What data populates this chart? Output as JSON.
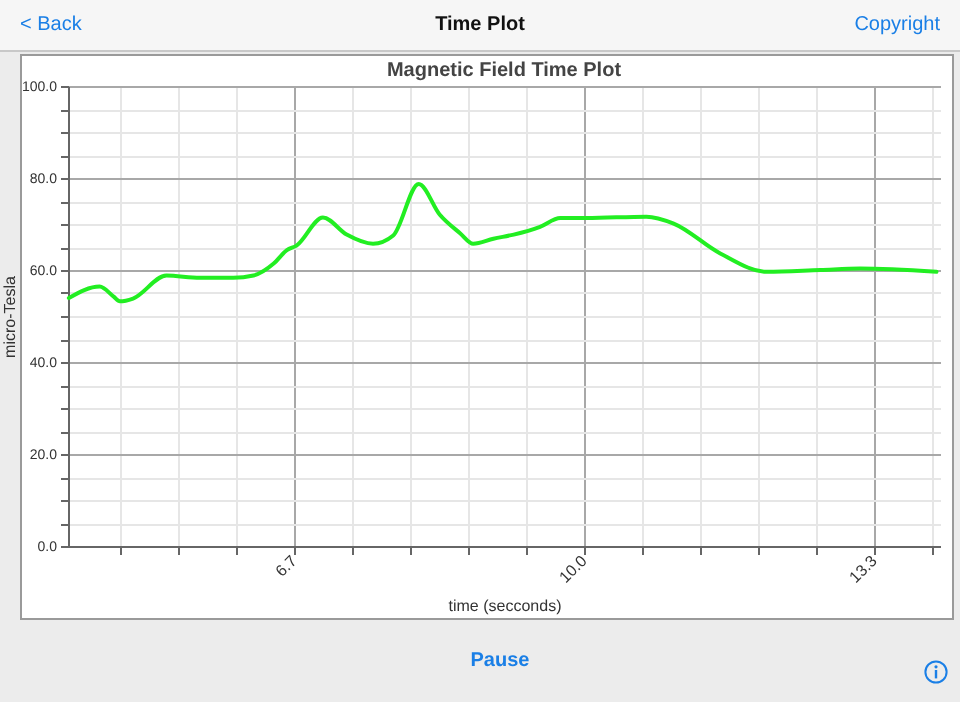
{
  "chart_data": {
    "type": "line",
    "title": "Magnetic Field Time Plot",
    "xlabel": "time (secconds)",
    "ylabel": "micro-Tesla",
    "annotations": [
      "< Back",
      "Time Plot",
      "Copyright",
      "Pause"
    ],
    "x": [
      4.14,
      4.49,
      4.65,
      4.72,
      4.87,
      5.25,
      5.63,
      6.01,
      6.24,
      6.47,
      6.62,
      6.73,
      7.03,
      7.3,
      7.6,
      7.83,
      8.12,
      8.36,
      8.59,
      8.74,
      8.97,
      9.2,
      9.5,
      9.73,
      10.03,
      10.71,
      11.02,
      11.55,
      12.08,
      12.69,
      13.14,
      14.01
    ],
    "series": [
      {
        "color": "#22ee22",
        "values": [
          53.9,
          56.4,
          54.2,
          53.2,
          53.8,
          58.8,
          58.3,
          58.3,
          58.8,
          61.4,
          64.3,
          65.3,
          71.4,
          67.7,
          65.7,
          67.5,
          78.7,
          72.0,
          68.0,
          65.7,
          66.8,
          67.7,
          69.4,
          71.3,
          71.3,
          71.6,
          70.1,
          63.6,
          59.6,
          60.0,
          60.3,
          59.6
        ]
      }
    ],
    "xlim": [
      4.13,
      14.05
    ],
    "xticks": [
      {
        "value": 4.72,
        "label": null
      },
      {
        "value": 5.38,
        "label": null
      },
      {
        "value": 6.04,
        "label": null
      },
      6.7,
      {
        "value": 7.36,
        "label": null
      },
      {
        "value": 8.02,
        "label": null
      },
      {
        "value": 8.68,
        "label": null
      },
      {
        "value": 9.34,
        "label": null
      },
      {
        "value": 10.0,
        "label": "10.0"
      },
      {
        "value": 10.66,
        "label": null
      },
      {
        "value": 11.32,
        "label": null
      },
      {
        "value": 11.98,
        "label": null
      },
      {
        "value": 12.64,
        "label": null
      },
      13.3,
      {
        "value": 13.96,
        "label": null
      }
    ],
    "ylim": [
      0,
      100
    ],
    "yticks": [
      {
        "value": 0,
        "label": "0.0"
      },
      {
        "value": 5,
        "label": null
      },
      {
        "value": 10,
        "label": null
      },
      {
        "value": 15,
        "label": null
      },
      {
        "value": 20,
        "label": "20.0"
      },
      {
        "value": 25,
        "label": null
      },
      {
        "value": 30,
        "label": null
      },
      {
        "value": 35,
        "label": null
      },
      {
        "value": 40,
        "label": "40.0"
      },
      {
        "value": 45,
        "label": null
      },
      {
        "value": 50,
        "label": null
      },
      {
        "value": 55,
        "label": null
      },
      {
        "value": 60,
        "label": "60.0"
      },
      {
        "value": 65,
        "label": null
      },
      {
        "value": 70,
        "label": null
      },
      {
        "value": 75,
        "label": null
      },
      {
        "value": 80,
        "label": "80.0"
      },
      {
        "value": 85,
        "label": null
      },
      {
        "value": 90,
        "label": null
      },
      {
        "value": 95,
        "label": null
      },
      {
        "value": 100,
        "label": "100.0"
      }
    ],
    "grid": true,
    "marker": "none",
    "line_style": "solid",
    "legend": false
  }
}
